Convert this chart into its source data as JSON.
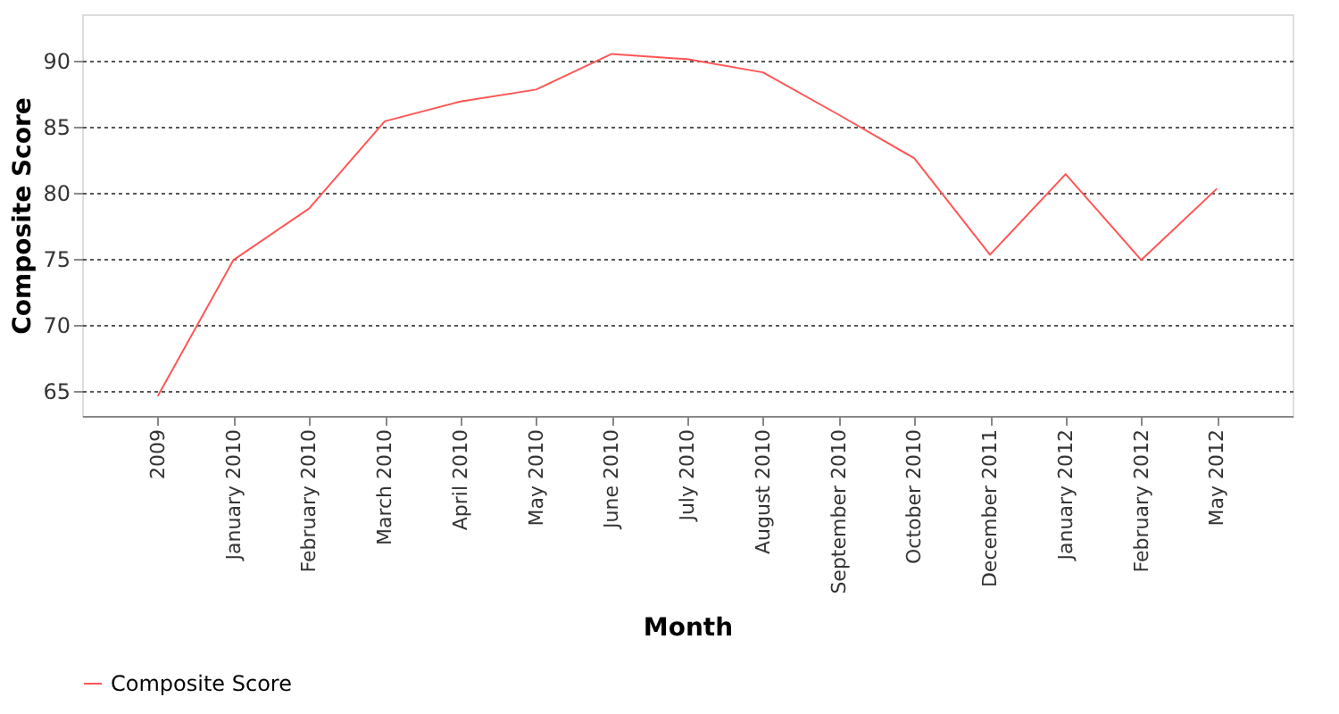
{
  "chart_data": {
    "type": "line",
    "xlabel": "Month",
    "ylabel": "Composite Score",
    "categories": [
      "2009",
      "January 2010",
      "February 2010",
      "March 2010",
      "April 2010",
      "May 2010",
      "June 2010",
      "July 2010",
      "August 2010",
      "September 2010",
      "October 2010",
      "December 2011",
      "January 2012",
      "February 2012",
      "May 2012"
    ],
    "series": [
      {
        "name": "Composite Score",
        "color": "#ff5555",
        "values": [
          64.6,
          74.9,
          78.8,
          85.4,
          86.9,
          87.8,
          90.5,
          90.1,
          89.1,
          85.9,
          82.6,
          75.3,
          81.4,
          74.9,
          80.3
        ]
      }
    ],
    "ylim": [
      63.1,
      93.5
    ],
    "yticks": [
      65,
      70,
      75,
      80,
      85,
      90
    ],
    "grid": "y",
    "legend": "bottom",
    "marker": "none",
    "line_style": "solid"
  }
}
